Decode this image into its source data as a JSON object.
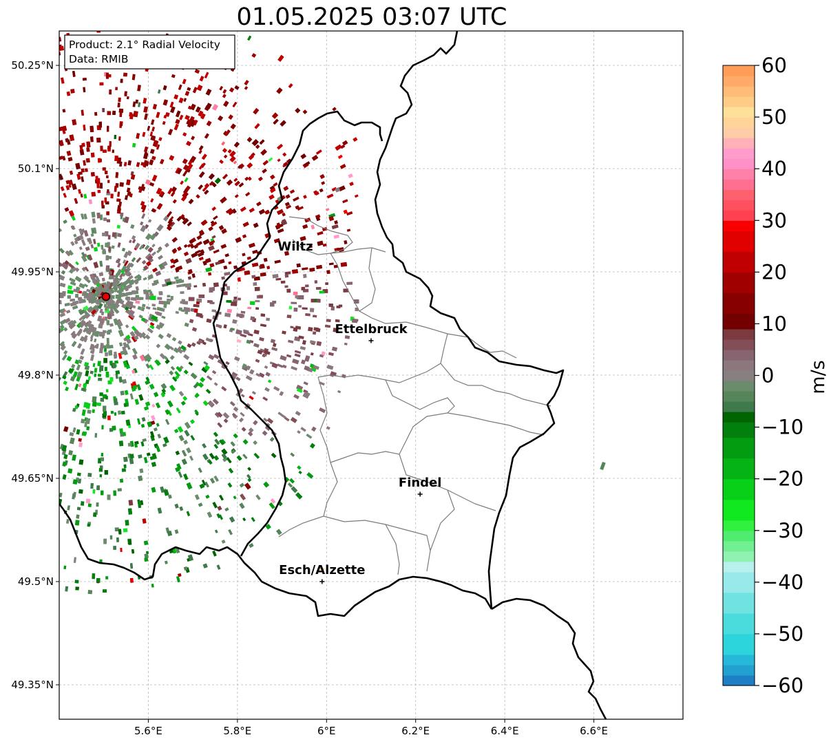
{
  "title": "01.05.2025 03:07 UTC",
  "info_box": {
    "product": "Product: 2.1° Radial Velocity",
    "data": "Data: RMIB"
  },
  "map": {
    "lon_range": [
      5.4,
      6.8
    ],
    "lat_range": [
      49.3,
      50.3
    ],
    "x_ticks": [
      {
        "value": 5.6,
        "label": "5.6°E"
      },
      {
        "value": 5.8,
        "label": "5.8°E"
      },
      {
        "value": 6.0,
        "label": "6°E"
      },
      {
        "value": 6.2,
        "label": "6.2°E"
      },
      {
        "value": 6.4,
        "label": "6.4°E"
      },
      {
        "value": 6.6,
        "label": "6.6°E"
      }
    ],
    "y_ticks": [
      {
        "value": 49.35,
        "label": "49.35°N"
      },
      {
        "value": 49.5,
        "label": "49.5°N"
      },
      {
        "value": 49.65,
        "label": "49.65°N"
      },
      {
        "value": 49.8,
        "label": "49.8°N"
      },
      {
        "value": 49.95,
        "label": "49.95°N"
      },
      {
        "value": 50.1,
        "label": "50.1°N"
      },
      {
        "value": 50.25,
        "label": "50.25°N"
      }
    ],
    "radar_site": {
      "lon": 5.505,
      "lat": 49.914
    },
    "cities": [
      {
        "name": "Wiltz",
        "lon": 5.93,
        "lat": 49.97,
        "marker": false
      },
      {
        "name": "Ettelbruck",
        "lon": 6.1,
        "lat": 49.85,
        "marker": true
      },
      {
        "name": "Findel",
        "lon": 6.21,
        "lat": 49.627,
        "marker": true
      },
      {
        "name": "Esch/Alzette",
        "lon": 5.99,
        "lat": 49.5,
        "marker": true
      }
    ]
  },
  "colorbar": {
    "label": "m/s",
    "min": -60,
    "max": 60,
    "ticks": [
      {
        "value": 60,
        "label": "60"
      },
      {
        "value": 50,
        "label": "50"
      },
      {
        "value": 40,
        "label": "40"
      },
      {
        "value": 30,
        "label": "30"
      },
      {
        "value": 20,
        "label": "20"
      },
      {
        "value": 10,
        "label": "10"
      },
      {
        "value": 0,
        "label": "0"
      },
      {
        "value": -10,
        "label": "−10"
      },
      {
        "value": -20,
        "label": "−20"
      },
      {
        "value": -30,
        "label": "−30"
      },
      {
        "value": -40,
        "label": "−40"
      },
      {
        "value": -50,
        "label": "−50"
      },
      {
        "value": -60,
        "label": "−60"
      }
    ],
    "stops": [
      {
        "from": -60,
        "to": -58,
        "color": "#1f7fc4"
      },
      {
        "from": -58,
        "to": -56,
        "color": "#22a0d0"
      },
      {
        "from": -56,
        "to": -54,
        "color": "#26b8d8"
      },
      {
        "from": -54,
        "to": -50,
        "color": "#2cd4dc"
      },
      {
        "from": -50,
        "to": -46,
        "color": "#4adcdc"
      },
      {
        "from": -46,
        "to": -42,
        "color": "#70e2e2"
      },
      {
        "from": -42,
        "to": -38,
        "color": "#98eaea"
      },
      {
        "from": -38,
        "to": -36,
        "color": "#b8f0ee"
      },
      {
        "from": -36,
        "to": -34,
        "color": "#90f2b0"
      },
      {
        "from": -34,
        "to": -32,
        "color": "#70f090"
      },
      {
        "from": -32,
        "to": -30,
        "color": "#50ec70"
      },
      {
        "from": -30,
        "to": -28,
        "color": "#30f040"
      },
      {
        "from": -28,
        "to": -24,
        "color": "#10e820"
      },
      {
        "from": -24,
        "to": -20,
        "color": "#08d018"
      },
      {
        "from": -20,
        "to": -16,
        "color": "#05b414"
      },
      {
        "from": -16,
        "to": -12,
        "color": "#039c10"
      },
      {
        "from": -12,
        "to": -9,
        "color": "#027f0c"
      },
      {
        "from": -9,
        "to": -7,
        "color": "#006400"
      },
      {
        "from": -7,
        "to": -5,
        "color": "#3e7a4a"
      },
      {
        "from": -5,
        "to": -3,
        "color": "#56855a"
      },
      {
        "from": -3,
        "to": -1,
        "color": "#6a8c6c"
      },
      {
        "from": -1,
        "to": 1,
        "color": "#888080"
      },
      {
        "from": 1,
        "to": 3,
        "color": "#8a787c"
      },
      {
        "from": 3,
        "to": 5,
        "color": "#866470"
      },
      {
        "from": 5,
        "to": 7,
        "color": "#844e58"
      },
      {
        "from": 7,
        "to": 9,
        "color": "#7a3a40"
      },
      {
        "from": 9,
        "to": 12,
        "color": "#720000"
      },
      {
        "from": 12,
        "to": 16,
        "color": "#860000"
      },
      {
        "from": 16,
        "to": 20,
        "color": "#a00000"
      },
      {
        "from": 20,
        "to": 24,
        "color": "#c00000"
      },
      {
        "from": 24,
        "to": 28,
        "color": "#e00000"
      },
      {
        "from": 28,
        "to": 30,
        "color": "#f80000"
      },
      {
        "from": 30,
        "to": 32,
        "color": "#ff4050"
      },
      {
        "from": 32,
        "to": 34,
        "color": "#ff5060"
      },
      {
        "from": 34,
        "to": 36,
        "color": "#ff6070"
      },
      {
        "from": 36,
        "to": 38,
        "color": "#ff7090"
      },
      {
        "from": 38,
        "to": 40,
        "color": "#ff80a8"
      },
      {
        "from": 40,
        "to": 42,
        "color": "#ff90c8"
      },
      {
        "from": 42,
        "to": 44,
        "color": "#ff9ccc"
      },
      {
        "from": 44,
        "to": 46,
        "color": "#ffb0b8"
      },
      {
        "from": 46,
        "to": 48,
        "color": "#ffcca8"
      },
      {
        "from": 48,
        "to": 50,
        "color": "#ffd498"
      },
      {
        "from": 50,
        "to": 52,
        "color": "#ffe098"
      },
      {
        "from": 52,
        "to": 54,
        "color": "#ffcc88"
      },
      {
        "from": 54,
        "to": 56,
        "color": "#ffbc78"
      },
      {
        "from": 56,
        "to": 58,
        "color": "#ffaa68"
      },
      {
        "from": 58,
        "to": 60,
        "color": "#ff9c58"
      }
    ]
  }
}
